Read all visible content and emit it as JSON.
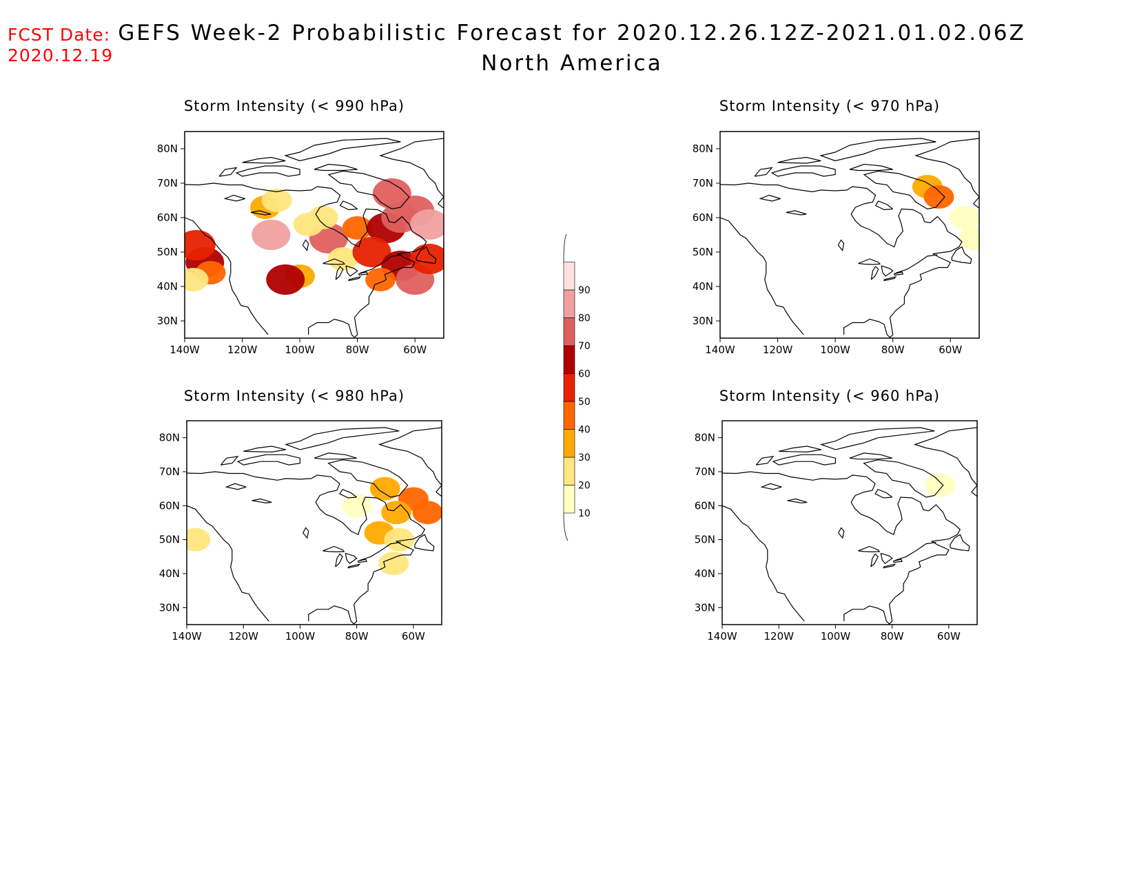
{
  "fcst": {
    "label": "FCST Date:",
    "date": "2020.12.19"
  },
  "title": {
    "line1": "GEFS Week-2 Probabilistic Forecast for 2020.12.26.12Z-2021.01.02.06Z",
    "line2": "North America"
  },
  "panels": [
    {
      "id": "p990",
      "title": "Storm Intensity (< 990 hPa)"
    },
    {
      "id": "p970",
      "title": "Storm Intensity (< 970 hPa)"
    },
    {
      "id": "p980",
      "title": "Storm Intensity (< 980 hPa)"
    },
    {
      "id": "p960",
      "title": "Storm Intensity (< 960 hPa)"
    }
  ],
  "axes": {
    "lat_labels": [
      "80N",
      "70N",
      "60N",
      "50N",
      "40N",
      "30N"
    ],
    "lat_values": [
      80,
      70,
      60,
      50,
      40,
      30
    ],
    "lon_labels": [
      "140W",
      "120W",
      "100W",
      "80W",
      "60W"
    ],
    "lon_values": [
      -140,
      -120,
      -100,
      -80,
      -60
    ],
    "lon_range": [
      -140,
      -50
    ],
    "lat_range": [
      25,
      85
    ]
  },
  "colorbar": {
    "levels": [
      10,
      20,
      30,
      40,
      50,
      60,
      70,
      80,
      90
    ],
    "labels": [
      "10",
      "20",
      "30",
      "40",
      "50",
      "60",
      "70",
      "80",
      "90"
    ],
    "colors": [
      "#ffffc0",
      "#ffe680",
      "#ffaa00",
      "#ff6600",
      "#e62200",
      "#b00000",
      "#e06060",
      "#f0a0a0",
      "#ffe0e0"
    ]
  },
  "probability_areas": {
    "p990": [
      {
        "lon": -133,
        "lat": 47,
        "level": 60
      },
      {
        "lon": -131,
        "lat": 44,
        "level": 40
      },
      {
        "lon": -136,
        "lat": 52,
        "level": 50
      },
      {
        "lon": -137,
        "lat": 42,
        "level": 20
      },
      {
        "lon": -112,
        "lat": 63,
        "level": 30
      },
      {
        "lon": -108,
        "lat": 65,
        "level": 20
      },
      {
        "lon": -110,
        "lat": 55,
        "level": 80
      },
      {
        "lon": -90,
        "lat": 54,
        "level": 70
      },
      {
        "lon": -97,
        "lat": 58,
        "level": 20
      },
      {
        "lon": -92,
        "lat": 60,
        "level": 20
      },
      {
        "lon": -85,
        "lat": 48,
        "level": 20
      },
      {
        "lon": -100,
        "lat": 43,
        "level": 30
      },
      {
        "lon": -105,
        "lat": 42,
        "level": 60
      },
      {
        "lon": -80,
        "lat": 57,
        "level": 40
      },
      {
        "lon": -70,
        "lat": 57,
        "level": 60
      },
      {
        "lon": -65,
        "lat": 60,
        "level": 70
      },
      {
        "lon": -60,
        "lat": 62,
        "level": 70
      },
      {
        "lon": -55,
        "lat": 58,
        "level": 80
      },
      {
        "lon": -68,
        "lat": 67,
        "level": 70
      },
      {
        "lon": -75,
        "lat": 50,
        "level": 50
      },
      {
        "lon": -65,
        "lat": 46,
        "level": 60
      },
      {
        "lon": -60,
        "lat": 42,
        "level": 70
      },
      {
        "lon": -72,
        "lat": 42,
        "level": 40
      },
      {
        "lon": -55,
        "lat": 48,
        "level": 50
      }
    ],
    "p970": [
      {
        "lon": -68,
        "lat": 69,
        "level": 30
      },
      {
        "lon": -64,
        "lat": 66,
        "level": 40
      },
      {
        "lon": -55,
        "lat": 60,
        "level": 10
      },
      {
        "lon": -52,
        "lat": 54,
        "level": 10
      }
    ],
    "p980": [
      {
        "lon": -137,
        "lat": 50,
        "level": 20
      },
      {
        "lon": -70,
        "lat": 65,
        "level": 30
      },
      {
        "lon": -60,
        "lat": 62,
        "level": 40
      },
      {
        "lon": -55,
        "lat": 58,
        "level": 40
      },
      {
        "lon": -66,
        "lat": 58,
        "level": 30
      },
      {
        "lon": -72,
        "lat": 52,
        "level": 30
      },
      {
        "lon": -65,
        "lat": 50,
        "level": 20
      },
      {
        "lon": -67,
        "lat": 43,
        "level": 20
      },
      {
        "lon": -80,
        "lat": 60,
        "level": 10
      }
    ],
    "p960": [
      {
        "lon": -63,
        "lat": 66,
        "level": 10
      }
    ]
  }
}
